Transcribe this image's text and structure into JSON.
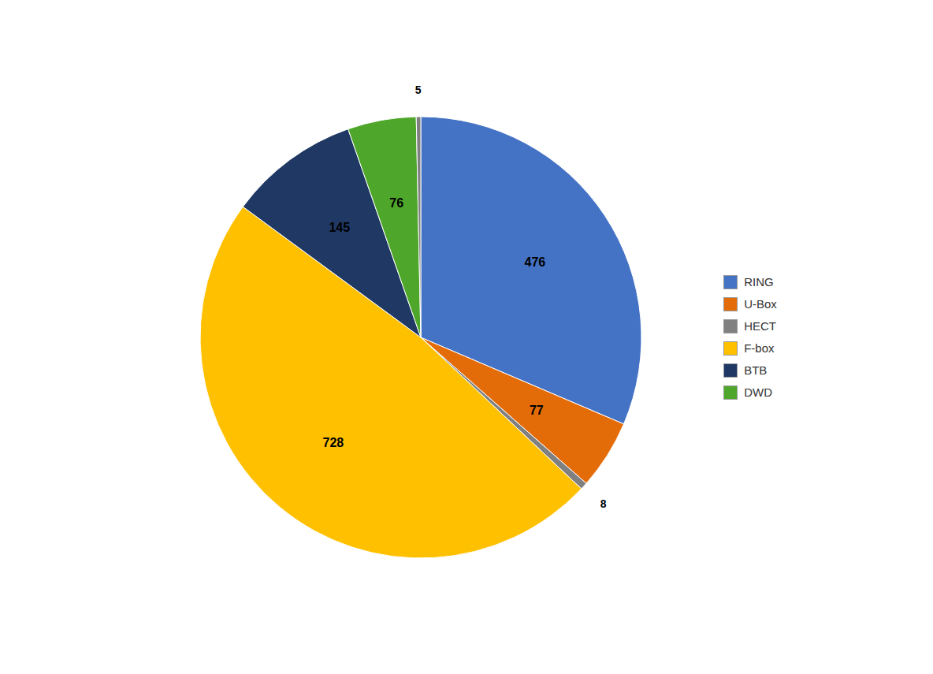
{
  "chart_data": {
    "type": "pie",
    "categories": [
      "RING",
      "U-Box",
      "HECT",
      "F-box",
      "BTB",
      "DWD",
      null
    ],
    "values": [
      476,
      77,
      8,
      728,
      145,
      76,
      5
    ],
    "colors": [
      "#4472C4",
      "#E36C09",
      "#808080",
      "#FFC000",
      "#1F3864",
      "#4EA72A",
      "#7F7F7F"
    ],
    "data_labels": true,
    "legend": "right"
  }
}
